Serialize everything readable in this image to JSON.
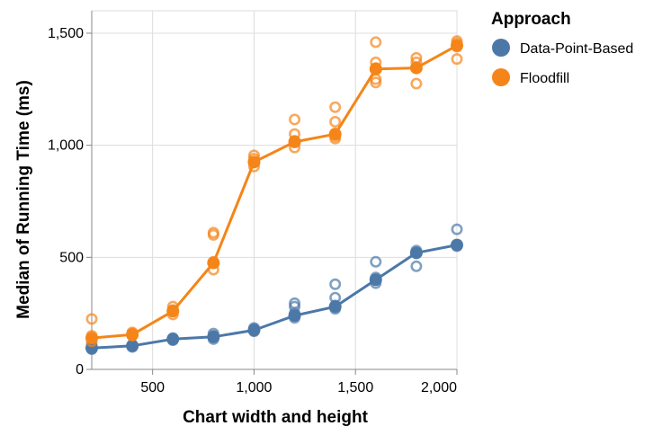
{
  "chart_data": {
    "type": "line",
    "xlabel": "Chart width and height",
    "ylabel": "Median of Running Time (ms)",
    "xlim": [
      200,
      2000
    ],
    "ylim": [
      0,
      1600
    ],
    "x_ticks": [
      {
        "value": 500,
        "label": "500"
      },
      {
        "value": 1000,
        "label": "1,000"
      },
      {
        "value": 1500,
        "label": "1,500"
      },
      {
        "value": 2000,
        "label": "2,000"
      }
    ],
    "y_ticks": [
      {
        "value": 0,
        "label": "0"
      },
      {
        "value": 500,
        "label": "500"
      },
      {
        "value": 1000,
        "label": "1,000"
      },
      {
        "value": 1500,
        "label": "1,500"
      }
    ],
    "grid": true,
    "legend": {
      "title": "Approach",
      "placement": "top-right"
    },
    "x": [
      200,
      400,
      600,
      800,
      1000,
      1200,
      1400,
      1600,
      1800,
      2000
    ],
    "series": [
      {
        "name": "Data-Point-Based",
        "color": "#4c78a8",
        "values": [
          95,
          105,
          135,
          145,
          175,
          240,
          280,
          400,
          520,
          555
        ],
        "points": [
          [
            200,
            90
          ],
          [
            200,
            100
          ],
          [
            200,
            110
          ],
          [
            400,
            100
          ],
          [
            400,
            105
          ],
          [
            400,
            110
          ],
          [
            600,
            130
          ],
          [
            600,
            135
          ],
          [
            600,
            140
          ],
          [
            800,
            135
          ],
          [
            800,
            150
          ],
          [
            800,
            160
          ],
          [
            1000,
            170
          ],
          [
            1000,
            180
          ],
          [
            1000,
            185
          ],
          [
            1200,
            230
          ],
          [
            1200,
            250
          ],
          [
            1200,
            280
          ],
          [
            1200,
            295
          ],
          [
            1400,
            270
          ],
          [
            1400,
            285
          ],
          [
            1400,
            320
          ],
          [
            1400,
            380
          ],
          [
            1600,
            385
          ],
          [
            1600,
            400
          ],
          [
            1600,
            410
          ],
          [
            1600,
            480
          ],
          [
            1800,
            460
          ],
          [
            1800,
            520
          ],
          [
            1800,
            530
          ],
          [
            2000,
            550
          ],
          [
            2000,
            555
          ],
          [
            2000,
            625
          ]
        ]
      },
      {
        "name": "Floodfill",
        "color": "#f58518",
        "values": [
          140,
          155,
          260,
          475,
          925,
          1015,
          1050,
          1340,
          1345,
          1445
        ],
        "points": [
          [
            200,
            125
          ],
          [
            200,
            150
          ],
          [
            200,
            225
          ],
          [
            400,
            150
          ],
          [
            400,
            160
          ],
          [
            400,
            165
          ],
          [
            600,
            245
          ],
          [
            600,
            265
          ],
          [
            600,
            280
          ],
          [
            800,
            445
          ],
          [
            800,
            480
          ],
          [
            800,
            600
          ],
          [
            800,
            610
          ],
          [
            1000,
            905
          ],
          [
            1000,
            925
          ],
          [
            1000,
            940
          ],
          [
            1000,
            955
          ],
          [
            1200,
            990
          ],
          [
            1200,
            1020
          ],
          [
            1200,
            1050
          ],
          [
            1200,
            1115
          ],
          [
            1400,
            1030
          ],
          [
            1400,
            1040
          ],
          [
            1400,
            1105
          ],
          [
            1400,
            1170
          ],
          [
            1600,
            1280
          ],
          [
            1600,
            1295
          ],
          [
            1600,
            1345
          ],
          [
            1600,
            1370
          ],
          [
            1600,
            1460
          ],
          [
            1800,
            1275
          ],
          [
            1800,
            1345
          ],
          [
            1800,
            1370
          ],
          [
            1800,
            1390
          ],
          [
            2000,
            1385
          ],
          [
            2000,
            1440
          ],
          [
            2000,
            1455
          ],
          [
            2000,
            1465
          ]
        ]
      }
    ]
  }
}
